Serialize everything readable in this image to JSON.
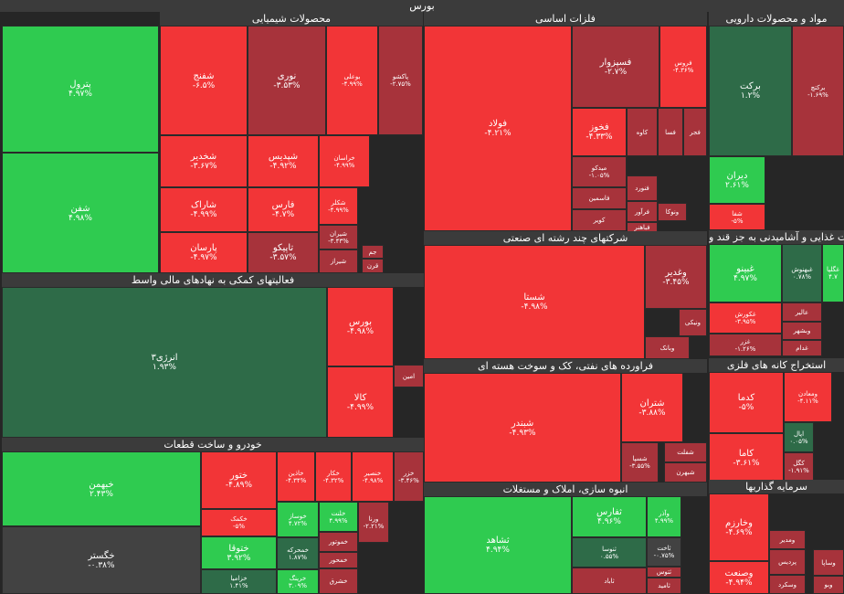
{
  "market_title": "بورس",
  "colors": {
    "up_strong": "#2fcb50",
    "up_mid": "#2e6b48",
    "neutral": "#424242",
    "down_mid": "#a7333b",
    "down_strong": "#f23537"
  },
  "chart_data": {
    "type": "treemap",
    "title": "بورس",
    "sectors": [
      {
        "name": "محصولات شیمیایی",
        "tiles": [
          {
            "name": "پترول",
            "change": "۴.۹۷%",
            "value": 4.97
          },
          {
            "name": "شفن",
            "change": "۴.۹۸%",
            "value": 4.98
          },
          {
            "name": "شفنج",
            "change": "-۶.۵%",
            "value": -6.5
          },
          {
            "name": "نوری",
            "change": "-۳.۵۳%",
            "value": -3.53
          },
          {
            "name": "بوعلی",
            "change": "-۴.۹۹%",
            "value": -4.99
          },
          {
            "name": "پاکشو",
            "change": "-۲.۷۵%",
            "value": -2.75
          },
          {
            "name": "شخدیر",
            "change": "-۳.۶۷%",
            "value": -3.67
          },
          {
            "name": "شپدیس",
            "change": "-۴.۹۲%",
            "value": -4.92
          },
          {
            "name": "خراسان",
            "change": "-۴.۹۹%",
            "value": -4.99
          },
          {
            "name": "شاراک",
            "change": "-۴.۹۹%",
            "value": -4.99
          },
          {
            "name": "فارس",
            "change": "-۴.۷%",
            "value": -4.7
          },
          {
            "name": "شکلر",
            "change": "-۴.۹۹%",
            "value": -4.99
          },
          {
            "name": "پارسان",
            "change": "-۴.۹۷%",
            "value": -4.97
          },
          {
            "name": "تاپیکو",
            "change": "-۳.۵۷%",
            "value": -3.57
          },
          {
            "name": "شیران",
            "change": "-۳.۴۳%",
            "value": -3.43
          },
          {
            "name": "شیراز",
            "change": "",
            "value": null
          },
          {
            "name": "جم",
            "change": "",
            "value": null
          },
          {
            "name": "قرن",
            "change": "",
            "value": null
          }
        ]
      },
      {
        "name": "فلزات اساسی",
        "tiles": [
          {
            "name": "فولاد",
            "change": "-۴.۲۱%",
            "value": -4.21
          },
          {
            "name": "فسپزوار",
            "change": "-۲.۷%",
            "value": -2.7
          },
          {
            "name": "فروس",
            "change": "-۴.۳۶%",
            "value": -4.36
          },
          {
            "name": "فخوز",
            "change": "-۴.۳۳%",
            "value": -4.33
          },
          {
            "name": "کاوه",
            "change": "",
            "value": null
          },
          {
            "name": "فسا",
            "change": "",
            "value": null
          },
          {
            "name": "فجر",
            "change": "",
            "value": null
          },
          {
            "name": "میدکو",
            "change": "-۱.۰۵%",
            "value": -1.05
          },
          {
            "name": "فنورد",
            "change": "",
            "value": null
          },
          {
            "name": "فاسمین",
            "change": "",
            "value": null
          },
          {
            "name": "فرآور",
            "change": "",
            "value": null
          },
          {
            "name": "ونوکا",
            "change": "",
            "value": null
          },
          {
            "name": "کویر",
            "change": "",
            "value": null
          },
          {
            "name": "فباهنر",
            "change": "",
            "value": null
          }
        ]
      },
      {
        "name": "مواد و محصولات دارویی",
        "tiles": [
          {
            "name": "برکت",
            "change": "۱.۲%",
            "value": 1.2
          },
          {
            "name": "برکتچ",
            "change": "-۱.۶۹%",
            "value": -1.69
          },
          {
            "name": "دیران",
            "change": "۲.۶۱%",
            "value": 2.61
          },
          {
            "name": "شفا",
            "change": "-۵%",
            "value": -5
          }
        ]
      },
      {
        "name": "فعالیتهای کمکی به نهادهای مالی واسط",
        "tiles": [
          {
            "name": "انرژی۳",
            "change": "۱.۹۳%",
            "value": 1.93
          },
          {
            "name": "بورس",
            "change": "-۴.۹۸%",
            "value": -4.98
          },
          {
            "name": "کالا",
            "change": "-۴.۹۹%",
            "value": -4.99
          },
          {
            "name": "امین",
            "change": "",
            "value": null
          }
        ]
      },
      {
        "name": "شرکتهای چند رشته ای صنعتی",
        "tiles": [
          {
            "name": "شستا",
            "change": "-۴.۹۸%",
            "value": -4.98
          },
          {
            "name": "وغدیر",
            "change": "-۳.۴۵%",
            "value": -3.45
          },
          {
            "name": "ونیکی",
            "change": "",
            "value": null
          },
          {
            "name": "وبانک",
            "change": "",
            "value": null
          }
        ]
      },
      {
        "name": "محصولات غذایی و آشامیدنی به جز قند و",
        "tiles": [
          {
            "name": "غبینو",
            "change": "۴.۹۷%",
            "value": 4.97
          },
          {
            "name": "غبهنوش",
            "change": "۰.۷۸%",
            "value": 0.78
          },
          {
            "name": "غگلپا",
            "change": "۴.۷",
            "value": 4.7
          },
          {
            "name": "غکورش",
            "change": "-۳.۹۵%",
            "value": -3.95
          },
          {
            "name": "عالیر",
            "change": "",
            "value": null
          },
          {
            "name": "غزر",
            "change": "-۱.۲۶%",
            "value": -1.26
          },
          {
            "name": "وبشهر",
            "change": "",
            "value": null
          },
          {
            "name": "غدام",
            "change": "",
            "value": null
          }
        ]
      },
      {
        "name": "فراورده های نفتی، کک و سوخت هسته ای",
        "tiles": [
          {
            "name": "شبندر",
            "change": "-۴.۹۳%",
            "value": -4.93
          },
          {
            "name": "شتران",
            "change": "-۳.۸۸%",
            "value": -3.88
          },
          {
            "name": "شسپا",
            "change": "-۳.۵۵%",
            "value": -3.55
          },
          {
            "name": "شفلت",
            "change": "",
            "value": null
          },
          {
            "name": "شبهرن",
            "change": "",
            "value": null
          }
        ]
      },
      {
        "name": "استخراج کانه های فلزی",
        "tiles": [
          {
            "name": "کدما",
            "change": "-۵%",
            "value": -5
          },
          {
            "name": "ومعادن",
            "change": "-۴.۱۱%",
            "value": -4.11
          },
          {
            "name": "کاما",
            "change": "-۳.۶۱%",
            "value": -3.61
          },
          {
            "name": "اپال",
            "change": "۰.۰۵%",
            "value": 0.05
          },
          {
            "name": "کگل",
            "change": "-۱.۹۱%",
            "value": -1.91
          }
        ]
      },
      {
        "name": "خودرو و ساخت قطعات",
        "tiles": [
          {
            "name": "خبهمن",
            "change": "۲.۴۳%",
            "value": 2.43
          },
          {
            "name": "خگستر",
            "change": "-۰.۳۸%",
            "value": -0.38
          },
          {
            "name": "ختور",
            "change": "-۴.۸۹%",
            "value": -4.89
          },
          {
            "name": "خاذین",
            "change": "-۴.۳۴%",
            "value": -4.34
          },
          {
            "name": "خکار",
            "change": "-۴.۳۲%",
            "value": -4.32
          },
          {
            "name": "خنصیر",
            "change": "-۴.۹۸%",
            "value": -4.98
          },
          {
            "name": "خزر",
            "change": "-۳.۴۶%",
            "value": -3.46
          },
          {
            "name": "خکمک",
            "change": "-۵%",
            "value": -5
          },
          {
            "name": "خوساز",
            "change": "۴.۷۲%",
            "value": 4.72
          },
          {
            "name": "خلنت",
            "change": "۴.۹۹%",
            "value": 4.99
          },
          {
            "name": "ورنا",
            "change": "-۲.۲۱%",
            "value": -2.21
          },
          {
            "name": "ختوقا",
            "change": "۳.۹۲%",
            "value": 3.92
          },
          {
            "name": "خمحرکه",
            "change": "۱.۸۷%",
            "value": 1.87
          },
          {
            "name": "خموتور",
            "change": "",
            "value": null
          },
          {
            "name": "خمحور",
            "change": "",
            "value": null
          },
          {
            "name": "خزامیا",
            "change": "۱.۴۱%",
            "value": 1.41
          },
          {
            "name": "خرینگ",
            "change": "۳.۰۹%",
            "value": 3.09
          },
          {
            "name": "خشرق",
            "change": "",
            "value": null
          }
        ]
      },
      {
        "name": "انبوه سازی، املاک و مستغلات",
        "tiles": [
          {
            "name": "ثشاهد",
            "change": "۴.۹۴%",
            "value": 4.94
          },
          {
            "name": "ثفارس",
            "change": "۴.۹۶%",
            "value": 4.96
          },
          {
            "name": "وآذر",
            "change": "۴.۹۹%",
            "value": 4.99
          },
          {
            "name": "ثنوسا",
            "change": "۰.۵۵%",
            "value": 0.55
          },
          {
            "name": "ثاخت",
            "change": "-۰.۷۵%",
            "value": -0.75
          },
          {
            "name": "ثتوس",
            "change": "",
            "value": null
          },
          {
            "name": "ثاباد",
            "change": "",
            "value": null
          },
          {
            "name": "ثامید",
            "change": "",
            "value": null
          }
        ]
      },
      {
        "name": "سرمایه گذاریها",
        "tiles": [
          {
            "name": "وخارزم",
            "change": "-۴.۶۹%",
            "value": -4.69
          },
          {
            "name": "ومدیر",
            "change": "",
            "value": null
          },
          {
            "name": "وصنعت",
            "change": "-۴.۹۴%",
            "value": -4.94
          },
          {
            "name": "پردیس",
            "change": "",
            "value": null
          },
          {
            "name": "وسکرد",
            "change": "",
            "value": null
          },
          {
            "name": "وساپا",
            "change": "",
            "value": null
          },
          {
            "name": "وبو",
            "change": "",
            "value": null
          }
        ]
      }
    ]
  }
}
